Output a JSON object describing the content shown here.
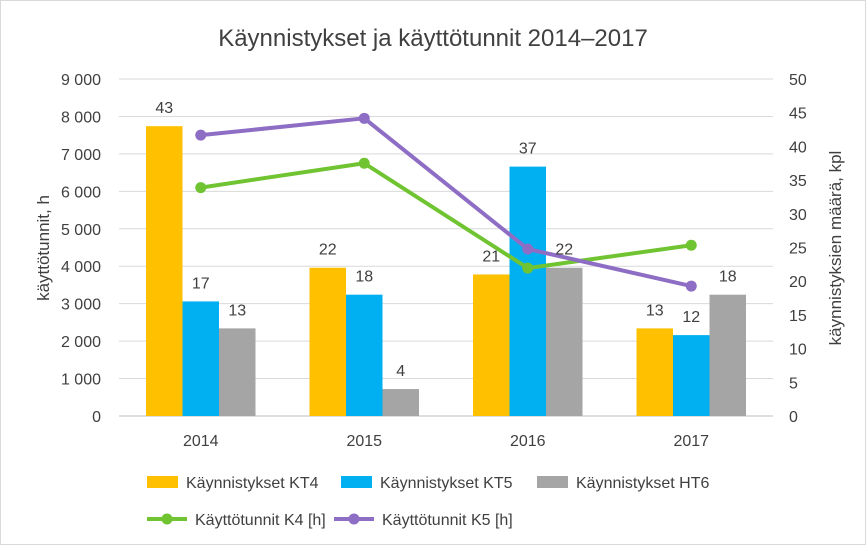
{
  "chart_data": {
    "type": "bar",
    "title": "Käynnistykset ja käyttötunnit 2014–2017",
    "categories": [
      "2014",
      "2015",
      "2016",
      "2017"
    ],
    "y_left": {
      "label": "käyttötunnit, h",
      "range": [
        0,
        9000
      ],
      "ticks": [
        "0",
        "1 000",
        "2 000",
        "3 000",
        "4 000",
        "5 000",
        "6 000",
        "7 000",
        "8 000",
        "9 000"
      ]
    },
    "y_right": {
      "label": "käynnistyksien määrä, kpl",
      "range": [
        0,
        50
      ],
      "ticks": [
        "0",
        "5",
        "10",
        "15",
        "20",
        "25",
        "30",
        "35",
        "40",
        "45",
        "50"
      ]
    },
    "bar_series": [
      {
        "name": "Käynnistykset KT4",
        "color": "#FFC000",
        "values": [
          43,
          22,
          21,
          13
        ]
      },
      {
        "name": "Käynnistykset KT5",
        "color": "#00B0F0",
        "values": [
          17,
          18,
          37,
          12
        ]
      },
      {
        "name": "Käynnistykset HT6",
        "color": "#A5A5A5",
        "values": [
          13,
          4,
          22,
          18
        ]
      }
    ],
    "line_series": [
      {
        "name": "Käyttötunnit K4 [h]",
        "color": "#70C432",
        "values": [
          6100,
          6750,
          3950,
          4560
        ]
      },
      {
        "name": "Käyttötunnit K5 [h]",
        "color": "#8E6DC4",
        "values": [
          7500,
          7950,
          4460,
          3470
        ]
      }
    ],
    "grid": true,
    "legend_position": "bottom"
  }
}
